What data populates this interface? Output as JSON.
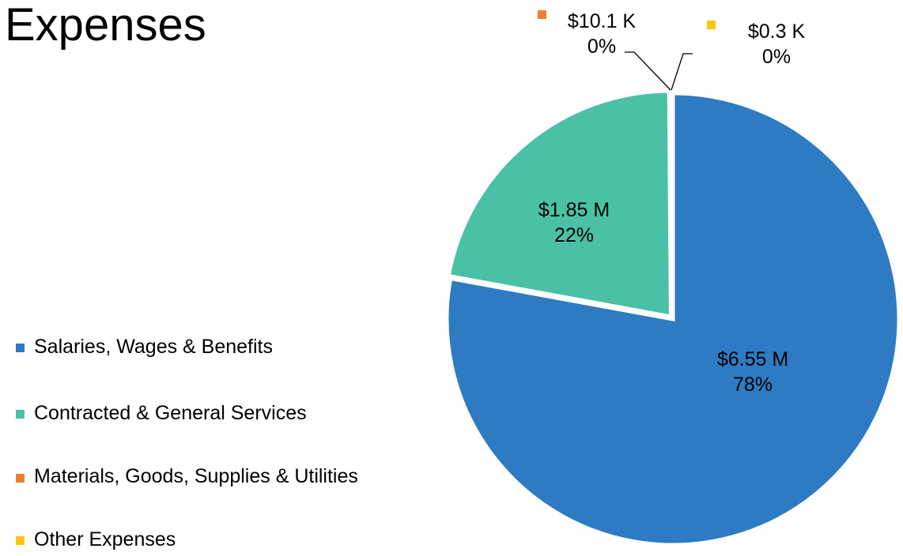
{
  "chart_data": {
    "type": "pie",
    "title": "Expenses",
    "legend_position": "left",
    "slices": [
      {
        "name": "Salaries, Wages & Benefits",
        "value": 6.55,
        "value_label": "$6.55 M",
        "percent_label": "78%",
        "color": "#2E7BC3"
      },
      {
        "name": "Contracted & General Services",
        "value": 1.85,
        "value_label": "$1.85 M",
        "percent_label": "22%",
        "color": "#4AC0A6"
      },
      {
        "name": "Materials, Goods, Supplies & Utilities",
        "value": 0.0101,
        "value_label": "$10.1 K",
        "percent_label": "0%",
        "color": "#EE7F2D"
      },
      {
        "name": "Other Expenses",
        "value": 0.0003,
        "value_label": "$0.3 K",
        "percent_label": "0%",
        "color": "#FFC510"
      }
    ]
  }
}
